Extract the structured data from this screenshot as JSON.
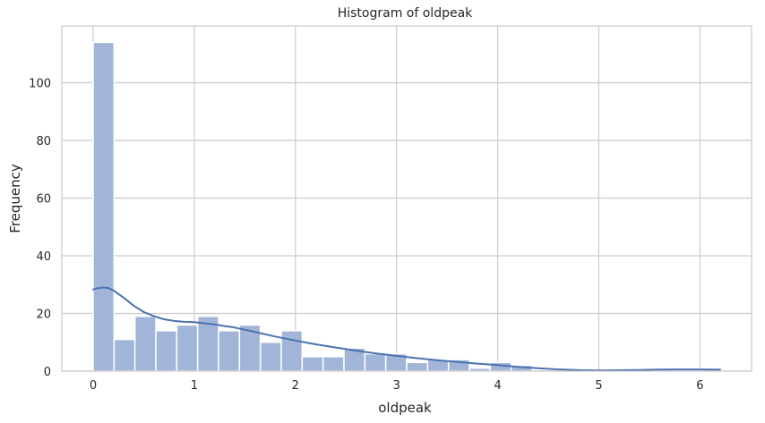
{
  "chart_data": {
    "type": "bar",
    "title": "Histogram of oldpeak",
    "xlabel": "oldpeak",
    "ylabel": "Frequency",
    "xlim": [
      -0.31,
      6.51
    ],
    "ylim": [
      0,
      119.7
    ],
    "xticks": [
      0,
      1,
      2,
      3,
      4,
      5,
      6
    ],
    "yticks": [
      0,
      20,
      40,
      60,
      80,
      100
    ],
    "grid": true,
    "legend": "none",
    "bin_width": 0.2067,
    "bins": [
      {
        "x0": 0.0,
        "count": 114
      },
      {
        "x0": 0.2067,
        "count": 11
      },
      {
        "x0": 0.4133,
        "count": 19
      },
      {
        "x0": 0.62,
        "count": 14
      },
      {
        "x0": 0.8267,
        "count": 16
      },
      {
        "x0": 1.0333,
        "count": 19
      },
      {
        "x0": 1.24,
        "count": 14
      },
      {
        "x0": 1.4467,
        "count": 16
      },
      {
        "x0": 1.6533,
        "count": 10
      },
      {
        "x0": 1.86,
        "count": 14
      },
      {
        "x0": 2.0667,
        "count": 5
      },
      {
        "x0": 2.2733,
        "count": 5
      },
      {
        "x0": 2.48,
        "count": 8
      },
      {
        "x0": 2.6867,
        "count": 6
      },
      {
        "x0": 2.8933,
        "count": 6
      },
      {
        "x0": 3.1,
        "count": 3
      },
      {
        "x0": 3.3067,
        "count": 4
      },
      {
        "x0": 3.5133,
        "count": 4
      },
      {
        "x0": 3.72,
        "count": 1
      },
      {
        "x0": 3.9267,
        "count": 3
      },
      {
        "x0": 4.1333,
        "count": 2
      },
      {
        "x0": 4.34,
        "count": 0
      },
      {
        "x0": 4.5467,
        "count": 0
      },
      {
        "x0": 4.7533,
        "count": 0
      },
      {
        "x0": 4.96,
        "count": 0
      },
      {
        "x0": 5.1667,
        "count": 0
      },
      {
        "x0": 5.3733,
        "count": 0
      },
      {
        "x0": 5.58,
        "count": 1
      },
      {
        "x0": 5.7867,
        "count": 0
      },
      {
        "x0": 5.9933,
        "count": 1
      }
    ],
    "kde": {
      "x": [
        0.0,
        0.05,
        0.1,
        0.15,
        0.2,
        0.3,
        0.4,
        0.5,
        0.6,
        0.7,
        0.8,
        0.9,
        1.0,
        1.2,
        1.4,
        1.6,
        1.8,
        2.0,
        2.2,
        2.4,
        2.6,
        2.8,
        3.0,
        3.2,
        3.4,
        3.6,
        3.8,
        4.0,
        4.2,
        4.4,
        4.6,
        4.8,
        5.0,
        5.2,
        5.4,
        5.6,
        5.8,
        6.0,
        6.2
      ],
      "y": [
        28.3,
        28.8,
        29.0,
        28.8,
        28.0,
        25.5,
        22.7,
        20.5,
        19.1,
        18.0,
        17.4,
        17.1,
        17.0,
        16.2,
        15.1,
        13.6,
        12.0,
        10.6,
        9.3,
        8.2,
        7.1,
        6.1,
        5.3,
        4.5,
        3.8,
        3.2,
        2.6,
        2.1,
        1.5,
        1.0,
        0.6,
        0.35,
        0.25,
        0.3,
        0.4,
        0.55,
        0.6,
        0.6,
        0.5
      ]
    },
    "colors": {
      "bar_fill": "#a2b5d8",
      "bar_edge": "#ffffff",
      "kde_line": "#4c72b0",
      "grid": "#cccccc",
      "spine": "#cccccc"
    }
  }
}
